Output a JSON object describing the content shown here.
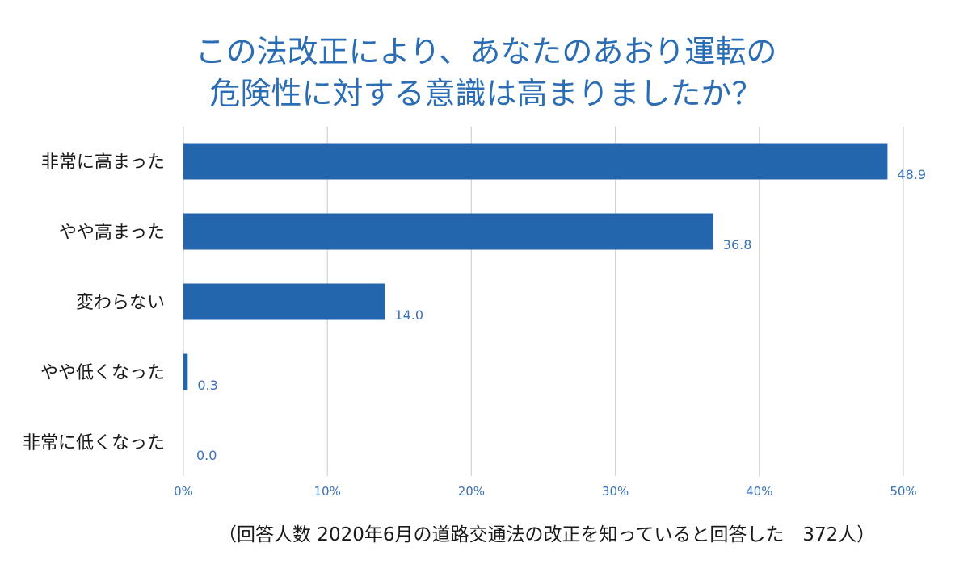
{
  "chart_data": {
    "type": "bar",
    "orientation": "horizontal",
    "title_lines": [
      "この法改正により、あなたのあおり運転の",
      "危険性に対する意識は高まりましたか？"
    ],
    "categories": [
      "非常に高まった",
      "やや高まった",
      "変わらない",
      "やや低くなった",
      "非常に低くなった"
    ],
    "values": [
      48.9,
      36.8,
      14.0,
      0.3,
      0.0
    ],
    "value_labels": [
      "48.9",
      "36.8",
      "14.0",
      "0.3",
      "0.0"
    ],
    "xlim": [
      0,
      50
    ],
    "ticks": [
      0,
      10,
      20,
      30,
      40,
      50
    ],
    "tick_labels": [
      "0%",
      "10%",
      "20%",
      "30%",
      "40%",
      "50%"
    ],
    "grid": true,
    "bar_color": "#2366ad",
    "footnote": "（回答人数 2020年6月の道路交通法の改正を知っていると回答した　372人）"
  }
}
